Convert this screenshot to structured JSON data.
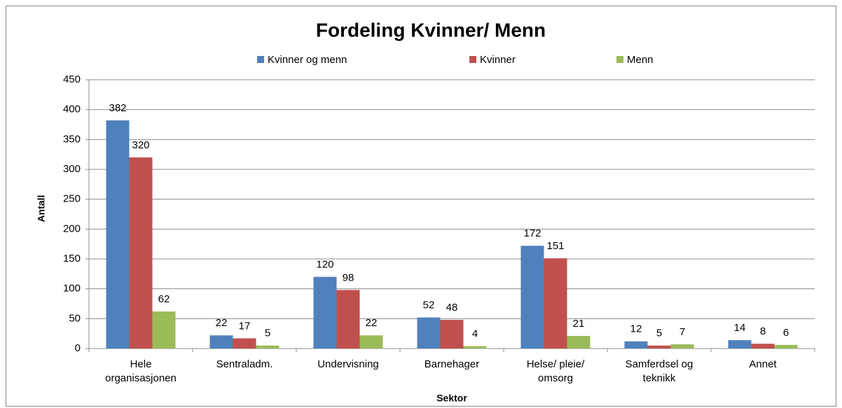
{
  "chart_data": {
    "type": "bar",
    "title": "Fordeling Kvinner/ Menn",
    "x_label": "Sektor",
    "y_label": "Antall",
    "categories": [
      "Hele organisasjonen",
      "Sentraladm.",
      "Undervisning",
      "Barnehager",
      "Helse/ pleie/ omsorg",
      "Samferdsel og teknikk",
      "Annet"
    ],
    "series": [
      {
        "name": "Kvinner og menn",
        "color": "#4f81bd",
        "values": [
          382,
          22,
          120,
          52,
          172,
          12,
          14
        ]
      },
      {
        "name": "Kvinner",
        "color": "#c0504d",
        "values": [
          320,
          17,
          98,
          48,
          151,
          5,
          8
        ]
      },
      {
        "name": "Menn",
        "color": "#9bbb59",
        "values": [
          62,
          5,
          22,
          4,
          21,
          7,
          6
        ]
      }
    ],
    "ylim": [
      0,
      450
    ],
    "yticks": [
      0,
      50,
      100,
      150,
      200,
      250,
      300,
      350,
      400,
      450
    ],
    "grid": true,
    "legend": "top"
  }
}
